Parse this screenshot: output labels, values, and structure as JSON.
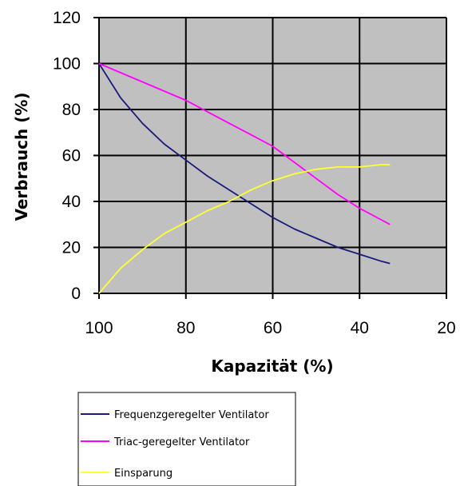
{
  "colors": {
    "plot_background": "#c0c0c0",
    "gridline": "#000000",
    "frequenz": "#1a1a7a",
    "triac": "#ff00ff",
    "einsparung": "#ffff33"
  },
  "chart_data": {
    "type": "line",
    "title": "",
    "xlabel": "Kapazität (%)",
    "ylabel": "Verbrauch (%)",
    "xlim": [
      100,
      20
    ],
    "x_reversed": true,
    "ylim": [
      0,
      120
    ],
    "xticks": [
      100,
      80,
      60,
      40,
      20
    ],
    "yticks": [
      0,
      20,
      40,
      60,
      80,
      100,
      120
    ],
    "grid": true,
    "legend_position": "bottom",
    "series": [
      {
        "name": "Frequenzgeregelter Ventilator",
        "color": "#1a1a7a",
        "x": [
          100,
          95,
          90,
          85,
          80,
          75,
          70,
          65,
          60,
          55,
          50,
          45,
          40,
          35,
          33
        ],
        "y": [
          100,
          85,
          74,
          65,
          58,
          51,
          45,
          39,
          33,
          28,
          24,
          20,
          17,
          14,
          13
        ]
      },
      {
        "name": "Triac-geregelter Ventilator",
        "color": "#ff00ff",
        "x": [
          100,
          95,
          90,
          85,
          80,
          75,
          70,
          65,
          60,
          55,
          50,
          45,
          40,
          35,
          33
        ],
        "y": [
          100,
          96,
          92,
          88,
          84,
          79,
          74,
          69,
          64,
          57,
          50,
          43,
          37,
          32,
          30
        ]
      },
      {
        "name": "Einsparung",
        "color": "#ffff33",
        "x": [
          100,
          95,
          90,
          85,
          80,
          75,
          70,
          65,
          60,
          55,
          50,
          45,
          40,
          35,
          33
        ],
        "y": [
          0,
          11,
          19,
          26,
          31,
          36,
          40,
          45,
          49,
          52,
          54,
          55,
          55,
          56,
          56
        ]
      }
    ]
  }
}
